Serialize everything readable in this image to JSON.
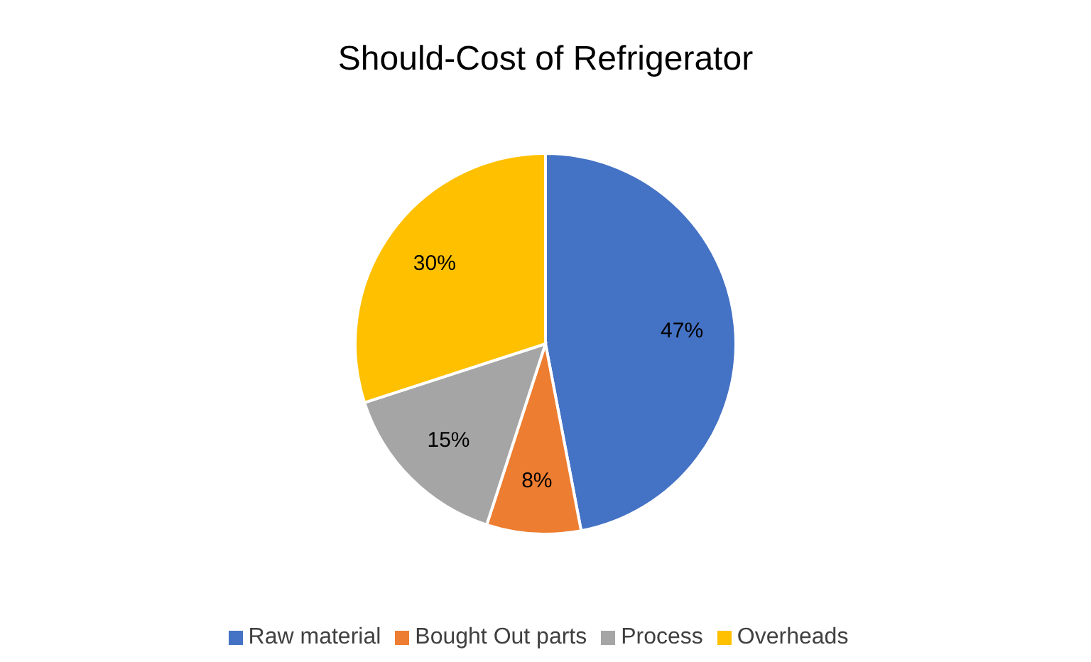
{
  "chart_data": {
    "type": "pie",
    "title": "Should-Cost of Refrigerator",
    "categories": [
      "Raw material",
      "Bought Out parts",
      "Process",
      "Overheads"
    ],
    "values": [
      47,
      8,
      15,
      30
    ],
    "colors": [
      "#4472c4",
      "#ed7d31",
      "#a5a5a5",
      "#ffc000"
    ],
    "value_labels": [
      "47%",
      "8%",
      "15%",
      "30%"
    ],
    "legend": "bottom"
  }
}
